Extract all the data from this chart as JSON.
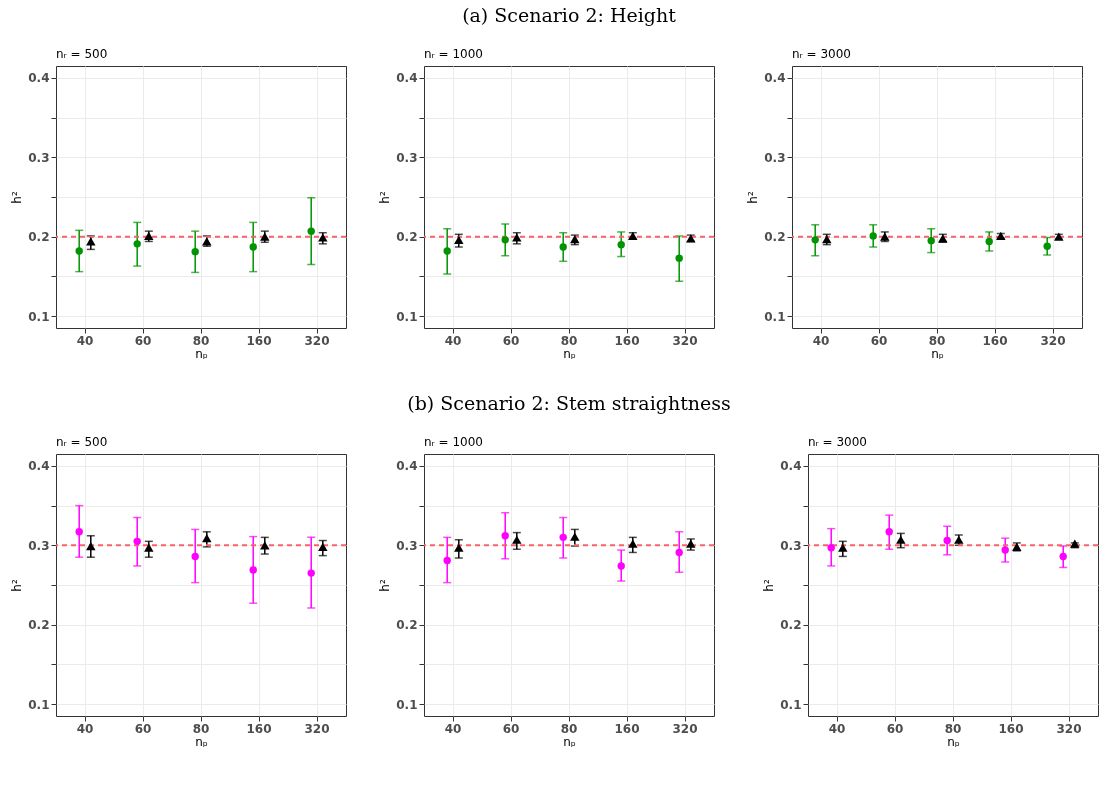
{
  "chart_data": [
    {
      "type": "scatter",
      "subtitle": "nᵣ = 500",
      "xlabel": "nₚ",
      "ylabel": "h²",
      "categories": [
        "40",
        "60",
        "80",
        "160",
        "320"
      ],
      "ylim": [
        0.085,
        0.415
      ],
      "yticks": [
        0.1,
        {
          "value": 0.15,
          "label": null
        },
        0.2,
        {
          "value": 0.25,
          "label": null
        },
        0.3,
        {
          "value": 0.35,
          "label": null
        },
        0.4
      ],
      "grid": true,
      "ref_lines": [
        {
          "axis": "y",
          "value": 0.2,
          "color": "#f8626a",
          "line_style": "dashed"
        }
      ],
      "series": [
        {
          "color": "#009400",
          "marker": "circle",
          "values": [
            0.182,
            0.191,
            0.181,
            0.187,
            0.207
          ],
          "errors": [
            [
              0.156,
              0.208
            ],
            [
              0.163,
              0.218
            ],
            [
              0.155,
              0.207
            ],
            [
              0.156,
              0.218
            ],
            [
              0.165,
              0.249
            ]
          ]
        },
        {
          "color": "#000000",
          "marker": "triangle",
          "values": [
            0.194,
            0.201,
            0.194,
            0.2,
            0.199
          ],
          "errors": [
            [
              0.184,
              0.201
            ],
            [
              0.194,
              0.207
            ],
            [
              0.188,
              0.201
            ],
            [
              0.193,
              0.207
            ],
            [
              0.191,
              0.205
            ]
          ]
        }
      ]
    },
    {
      "type": "scatter",
      "title": "(a) Scenario 2: Height",
      "subtitle": "nᵣ = 1000",
      "xlabel": "nₚ",
      "ylabel": "h²",
      "categories": [
        "40",
        "60",
        "80",
        "160",
        "320"
      ],
      "ylim": [
        0.085,
        0.415
      ],
      "yticks": [
        0.1,
        {
          "value": 0.15,
          "label": null
        },
        0.2,
        {
          "value": 0.25,
          "label": null
        },
        0.3,
        {
          "value": 0.35,
          "label": null
        },
        0.4
      ],
      "grid": true,
      "ref_lines": [
        {
          "axis": "y",
          "value": 0.2,
          "color": "#f8626a",
          "line_style": "dashed"
        }
      ],
      "series": [
        {
          "color": "#009400",
          "marker": "circle",
          "values": [
            0.182,
            0.196,
            0.187,
            0.19,
            0.173
          ],
          "errors": [
            [
              0.153,
              0.21
            ],
            [
              0.176,
              0.216
            ],
            [
              0.169,
              0.205
            ],
            [
              0.175,
              0.206
            ],
            [
              0.144,
              0.201
            ]
          ]
        },
        {
          "color": "#000000",
          "marker": "triangle",
          "values": [
            0.196,
            0.199,
            0.197,
            0.201,
            0.198
          ],
          "errors": [
            [
              0.187,
              0.203
            ],
            [
              0.191,
              0.205
            ],
            [
              0.19,
              0.202
            ],
            [
              0.197,
              0.205
            ],
            [
              0.194,
              0.202
            ]
          ]
        }
      ]
    },
    {
      "type": "scatter",
      "subtitle": "nᵣ = 3000",
      "xlabel": "nₚ",
      "ylabel": "h²",
      "categories": [
        "40",
        "60",
        "80",
        "160",
        "320"
      ],
      "ylim": [
        0.085,
        0.415
      ],
      "yticks": [
        0.1,
        {
          "value": 0.15,
          "label": null
        },
        0.2,
        {
          "value": 0.25,
          "label": null
        },
        0.3,
        {
          "value": 0.35,
          "label": null
        },
        0.4
      ],
      "grid": true,
      "ref_lines": [
        {
          "axis": "y",
          "value": 0.2,
          "color": "#f8626a",
          "line_style": "dashed"
        }
      ],
      "series": [
        {
          "color": "#009400",
          "marker": "circle",
          "values": [
            0.196,
            0.201,
            0.195,
            0.194,
            0.188
          ],
          "errors": [
            [
              0.176,
              0.215
            ],
            [
              0.187,
              0.215
            ],
            [
              0.18,
              0.21
            ],
            [
              0.182,
              0.206
            ],
            [
              0.177,
              0.199
            ]
          ]
        },
        {
          "color": "#000000",
          "marker": "triangle",
          "values": [
            0.197,
            0.2,
            0.198,
            0.201,
            0.2
          ],
          "errors": [
            [
              0.19,
              0.203
            ],
            [
              0.194,
              0.206
            ],
            [
              0.193,
              0.203
            ],
            [
              0.198,
              0.204
            ],
            [
              0.197,
              0.203
            ]
          ]
        }
      ]
    },
    {
      "type": "scatter",
      "subtitle": "nᵣ = 500",
      "xlabel": "nₚ",
      "ylabel": "h²",
      "categories": [
        "40",
        "60",
        "80",
        "160",
        "320"
      ],
      "ylim": [
        0.085,
        0.415
      ],
      "yticks": [
        0.1,
        {
          "value": 0.15,
          "label": null
        },
        0.2,
        {
          "value": 0.25,
          "label": null
        },
        0.3,
        {
          "value": 0.35,
          "label": null
        },
        0.4
      ],
      "grid": true,
      "ref_lines": [
        {
          "axis": "y",
          "value": 0.3,
          "color": "#f8626a",
          "line_style": "dashed"
        }
      ],
      "series": [
        {
          "color": "#ff00ff",
          "marker": "circle",
          "values": [
            0.317,
            0.305,
            0.286,
            0.269,
            0.265
          ],
          "errors": [
            [
              0.285,
              0.35
            ],
            [
              0.274,
              0.335
            ],
            [
              0.253,
              0.32
            ],
            [
              0.227,
              0.311
            ],
            [
              0.221,
              0.31
            ]
          ]
        },
        {
          "color": "#000000",
          "marker": "triangle",
          "values": [
            0.299,
            0.297,
            0.309,
            0.3,
            0.298
          ],
          "errors": [
            [
              0.285,
              0.312
            ],
            [
              0.285,
              0.305
            ],
            [
              0.298,
              0.317
            ],
            [
              0.289,
              0.31
            ],
            [
              0.287,
              0.306
            ]
          ]
        }
      ]
    },
    {
      "type": "scatter",
      "title": "(b) Scenario 2: Stem straightness",
      "subtitle": "nᵣ = 1000",
      "xlabel": "nₚ",
      "ylabel": "h²",
      "categories": [
        "40",
        "60",
        "80",
        "160",
        "320"
      ],
      "ylim": [
        0.085,
        0.415
      ],
      "yticks": [
        0.1,
        {
          "value": 0.15,
          "label": null
        },
        0.2,
        {
          "value": 0.25,
          "label": null
        },
        0.3,
        {
          "value": 0.35,
          "label": null
        },
        0.4
      ],
      "grid": true,
      "ref_lines": [
        {
          "axis": "y",
          "value": 0.3,
          "color": "#f8626a",
          "line_style": "dashed"
        }
      ],
      "series": [
        {
          "color": "#ff00ff",
          "marker": "circle",
          "values": [
            0.281,
            0.312,
            0.31,
            0.274,
            0.291
          ],
          "errors": [
            [
              0.253,
              0.31
            ],
            [
              0.283,
              0.341
            ],
            [
              0.284,
              0.335
            ],
            [
              0.255,
              0.294
            ],
            [
              0.266,
              0.317
            ]
          ]
        },
        {
          "color": "#000000",
          "marker": "triangle",
          "values": [
            0.297,
            0.307,
            0.311,
            0.302,
            0.302
          ],
          "errors": [
            [
              0.284,
              0.307
            ],
            [
              0.295,
              0.316
            ],
            [
              0.299,
              0.32
            ],
            [
              0.291,
              0.31
            ],
            [
              0.294,
              0.308
            ]
          ]
        }
      ]
    },
    {
      "type": "scatter",
      "subtitle": "nᵣ = 3000",
      "xlabel": "nₚ",
      "ylabel": "h²",
      "categories": [
        "40",
        "60",
        "80",
        "160",
        "320"
      ],
      "ylim": [
        0.085,
        0.415
      ],
      "yticks": [
        0.1,
        {
          "value": 0.15,
          "label": null
        },
        0.2,
        {
          "value": 0.25,
          "label": null
        },
        0.3,
        {
          "value": 0.35,
          "label": null
        },
        0.4
      ],
      "grid": true,
      "ref_lines": [
        {
          "axis": "y",
          "value": 0.3,
          "color": "#f8626a",
          "line_style": "dashed"
        }
      ],
      "series": [
        {
          "color": "#ff00ff",
          "marker": "circle",
          "values": [
            0.297,
            0.317,
            0.306,
            0.294,
            0.286
          ],
          "errors": [
            [
              0.274,
              0.321
            ],
            [
              0.295,
              0.338
            ],
            [
              0.288,
              0.324
            ],
            [
              0.279,
              0.309
            ],
            [
              0.272,
              0.299
            ]
          ]
        },
        {
          "color": "#000000",
          "marker": "triangle",
          "values": [
            0.297,
            0.307,
            0.307,
            0.298,
            0.302
          ],
          "errors": [
            [
              0.286,
              0.305
            ],
            [
              0.297,
              0.315
            ],
            [
              0.3,
              0.313
            ],
            [
              0.293,
              0.303
            ],
            [
              0.297,
              0.303
            ]
          ]
        }
      ]
    }
  ]
}
